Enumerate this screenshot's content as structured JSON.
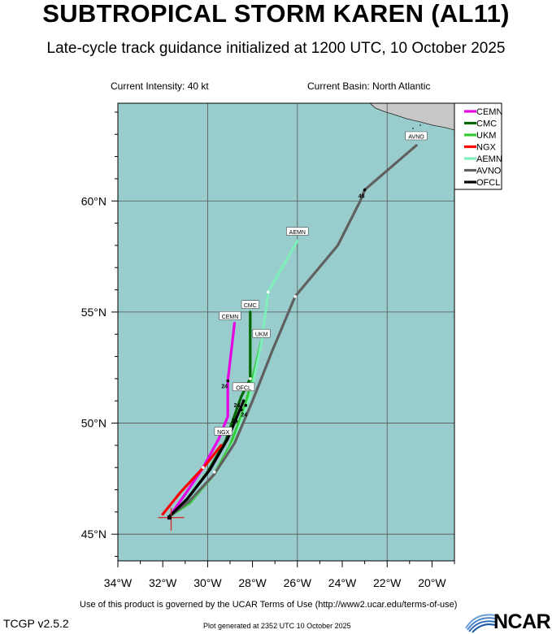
{
  "title": "SUBTROPICAL STORM KAREN (AL11)",
  "subtitle": "Late-cycle track guidance initialized at 1200 UTC, 10 October 2025",
  "intensity_text": "Current Intensity: 40 kt",
  "basin_text": "Current Basin: North Atlantic",
  "terms_text": "Use of this product is governed by the UCAR Terms of Use (http://www2.ucar.edu/terms-of-use)",
  "version_text": "TCGP v2.5.2",
  "generated_text": "Plot generated at 2352 UTC   10 October 2025",
  "logo_text": "NCAR",
  "colors": {
    "ocean": "#99cccc",
    "land": "#c8c8c8",
    "grid": "#555555"
  },
  "chart_data": {
    "type": "line",
    "x_axis": {
      "range_deg_lon": [
        -34.0,
        -19.0
      ],
      "ticks": [
        -34,
        -32,
        -30,
        -28,
        -26,
        -24,
        -22,
        -20
      ],
      "tick_labels": [
        "34°W",
        "32°W",
        "30°W",
        "28°W",
        "26°W",
        "24°W",
        "22°W",
        "20°W"
      ]
    },
    "y_axis": {
      "range_deg_lat": [
        43.8,
        64.4
      ],
      "ticks": [
        45,
        50,
        55,
        60
      ],
      "tick_labels": [
        "45°N",
        "50°N",
        "55°N",
        "60°N"
      ]
    },
    "legend_location": "top-right",
    "series": [
      {
        "name": "CEMN",
        "color": "#e600e6",
        "width": 3.2,
        "points": [
          [
            -31.7,
            45.8
          ],
          [
            -31.0,
            46.8
          ],
          [
            -30.2,
            48.0
          ],
          [
            -29.5,
            49.3
          ],
          [
            -29.1,
            50.3
          ],
          [
            -29.1,
            51.9
          ],
          [
            -28.8,
            54.5
          ]
        ],
        "end_label": "CEMN",
        "end_label_at": [
          -29.0,
          54.8
        ],
        "hour_marks": [
          {
            "text": "24",
            "at": [
              -29.1,
              51.9
            ],
            "dx": -4,
            "dy": 9
          }
        ]
      },
      {
        "name": "CMC",
        "color": "#006600",
        "width": 3.2,
        "points": [
          [
            -31.7,
            45.8
          ],
          [
            -30.9,
            46.6
          ],
          [
            -30.0,
            47.8
          ],
          [
            -29.2,
            49.2
          ],
          [
            -28.5,
            51.2
          ],
          [
            -28.1,
            52.0
          ],
          [
            -28.1,
            55.0
          ]
        ],
        "end_label": "CMC",
        "end_label_at": [
          -28.1,
          55.3
        ],
        "hour_marks": []
      },
      {
        "name": "UKM",
        "color": "#33cc33",
        "width": 3.2,
        "points": [
          [
            -31.7,
            45.8
          ],
          [
            -30.8,
            46.4
          ],
          [
            -29.7,
            47.7
          ],
          [
            -29.0,
            49.0
          ],
          [
            -28.4,
            50.6
          ],
          [
            -28.0,
            52.0
          ],
          [
            -27.6,
            53.7
          ]
        ],
        "end_label": "UKM",
        "end_label_at": [
          -27.6,
          54.0
        ],
        "hour_marks": []
      },
      {
        "name": "NGX",
        "color": "#ff0000",
        "width": 3.2,
        "points": [
          [
            -32.0,
            45.9
          ],
          [
            -31.2,
            46.9
          ],
          [
            -30.1,
            48.1
          ],
          [
            -29.4,
            49.0
          ]
        ],
        "end_label": "NGX",
        "end_label_at": [
          -29.3,
          49.6
        ],
        "hour_marks": []
      },
      {
        "name": "AEMN",
        "color": "#80eebb",
        "width": 3.2,
        "points": [
          [
            -31.7,
            45.8
          ],
          [
            -30.7,
            46.6
          ],
          [
            -29.6,
            47.8
          ],
          [
            -28.8,
            49.2
          ],
          [
            -28.1,
            51.2
          ],
          [
            -27.6,
            53.6
          ],
          [
            -27.3,
            55.9
          ],
          [
            -26.0,
            58.2
          ]
        ],
        "end_label": "AEMN",
        "end_label_at": [
          -26.0,
          58.6
        ],
        "hour_marks": []
      },
      {
        "name": "AVNO",
        "color": "#606060",
        "width": 3.2,
        "points": [
          [
            -31.7,
            45.8
          ],
          [
            -30.8,
            46.5
          ],
          [
            -29.7,
            47.7
          ],
          [
            -28.8,
            49.1
          ],
          [
            -28.0,
            51.0
          ],
          [
            -27.1,
            53.3
          ],
          [
            -26.1,
            55.7
          ],
          [
            -24.2,
            58.0
          ],
          [
            -23.2,
            60.0
          ],
          [
            -23.0,
            60.5
          ],
          [
            -20.7,
            62.5
          ]
        ],
        "end_label": "AVNO",
        "end_label_at": [
          -20.7,
          62.9
        ],
        "hour_marks": [
          {
            "text": "48",
            "at": [
              -23.0,
              60.5
            ],
            "dx": -4,
            "dy": 10
          }
        ]
      },
      {
        "name": "OFCL",
        "color": "#000000",
        "width": 3.2,
        "points": [
          [
            -31.7,
            45.8
          ],
          [
            -30.9,
            46.6
          ],
          [
            -29.9,
            47.9
          ],
          [
            -29.1,
            49.3
          ],
          [
            -28.4,
            51.0
          ]
        ],
        "end_label": "OFCL",
        "end_label_at": [
          -28.4,
          51.6
        ],
        "hour_marks": [
          {
            "text": "24",
            "at": [
              -28.4,
              51.0
            ],
            "dx": -8,
            "dy": 8
          },
          {
            "text": "24",
            "at": [
              -28.3,
              50.8
            ],
            "dx": -2,
            "dy": 14
          },
          {
            "text": "24",
            "at": [
              -28.5,
              50.6
            ],
            "dx": -8,
            "dy": 16
          }
        ]
      }
    ],
    "initial_position": [
      -31.7,
      45.75
    ]
  }
}
